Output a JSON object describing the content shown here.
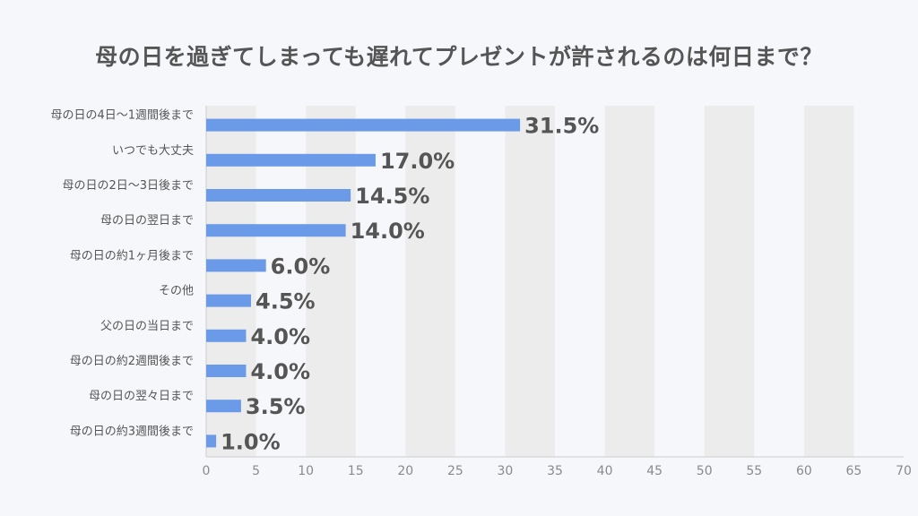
{
  "chart_data": {
    "type": "bar",
    "orientation": "horizontal",
    "title": "母の日を過ぎてしまっても遅れてプレゼントが許されるのは何日まで？",
    "xlabel": "",
    "ylabel": "",
    "xlim": [
      0,
      70
    ],
    "x_ticks": [
      "0",
      "5",
      "10",
      "15",
      "20",
      "25",
      "30",
      "35",
      "40",
      "45",
      "50",
      "55",
      "60",
      "65",
      "70"
    ],
    "grid": "alternating vertical bands",
    "categories": [
      "母の日の4日〜1週間後まで",
      "いつでも大丈夫",
      "母の日の2日〜3日後まで",
      "母の日の翌日まで",
      "母の日の約1ヶ月後まで",
      "その他",
      "父の日の当日まで",
      "母の日の約2週間後まで",
      "母の日の翌々日まで",
      "母の日の約3週間後まで"
    ],
    "values": [
      31.5,
      17.0,
      14.5,
      14.0,
      6.0,
      4.5,
      4.0,
      4.0,
      3.5,
      1.0
    ],
    "value_labels": [
      "31.5%",
      "17.0%",
      "14.5%",
      "14.0%",
      "6.0%",
      "4.5%",
      "4.0%",
      "4.0%",
      "3.5%",
      "1.0%"
    ],
    "colors": {
      "bar": "#6b9ae8",
      "band": "#ececec",
      "axis": "#cccccc",
      "text": "#555555",
      "tick": "#8a8a8a",
      "background": "#f5f7fa"
    }
  }
}
